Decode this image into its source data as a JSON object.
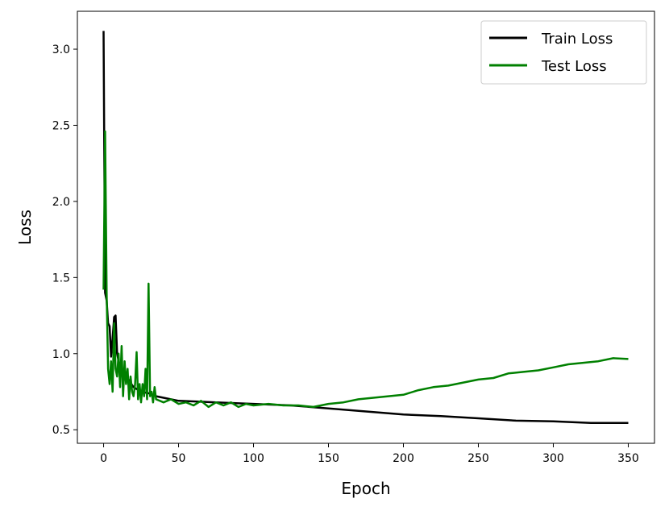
{
  "chart_data": {
    "type": "line",
    "xlabel": "Epoch",
    "ylabel": "Loss",
    "xlim": [
      -17.5,
      367.5
    ],
    "ylim": [
      0.411,
      3.249
    ],
    "xticks": [
      0,
      50,
      100,
      150,
      200,
      250,
      300,
      350
    ],
    "yticks": [
      {
        "value": 0.5,
        "label": "0.5"
      },
      {
        "value": 1,
        "label": "1.0"
      },
      {
        "value": 1.5,
        "label": "1.5"
      },
      {
        "value": 2,
        "label": "2.0"
      },
      {
        "value": 2.5,
        "label": "2.5"
      },
      {
        "value": 3,
        "label": "3.0"
      }
    ],
    "legend": "upper right",
    "series": [
      {
        "name": "Train Loss",
        "color": "#000000",
        "x": [
          0,
          1,
          2,
          3,
          4,
          5,
          6,
          7,
          8,
          9,
          10,
          12,
          15,
          20,
          25,
          30,
          35,
          40,
          50,
          75,
          100,
          125,
          150,
          175,
          200,
          225,
          250,
          275,
          300,
          325,
          350
        ],
        "values": [
          3.12,
          1.4,
          1.35,
          1.2,
          1.18,
          0.98,
          1.1,
          1.24,
          1.25,
          1.0,
          0.95,
          0.9,
          0.85,
          0.78,
          0.75,
          0.74,
          0.72,
          0.71,
          0.69,
          0.68,
          0.67,
          0.66,
          0.64,
          0.62,
          0.6,
          0.59,
          0.575,
          0.56,
          0.555,
          0.545,
          0.545
        ]
      },
      {
        "name": "Test Loss",
        "color": "#008000",
        "x": [
          0,
          1,
          2,
          3,
          4,
          5,
          6,
          7,
          8,
          9,
          10,
          11,
          12,
          13,
          14,
          15,
          16,
          17,
          18,
          19,
          20,
          21,
          22,
          23,
          24,
          25,
          26,
          27,
          28,
          29,
          30,
          31,
          32,
          33,
          34,
          35,
          40,
          45,
          50,
          55,
          60,
          65,
          70,
          75,
          80,
          85,
          90,
          95,
          100,
          110,
          120,
          130,
          140,
          150,
          160,
          170,
          180,
          190,
          200,
          210,
          220,
          230,
          240,
          250,
          260,
          270,
          280,
          290,
          300,
          310,
          320,
          330,
          340,
          350
        ],
        "values": [
          1.42,
          2.46,
          1.4,
          0.9,
          0.8,
          0.95,
          0.75,
          1.2,
          0.9,
          0.85,
          1.0,
          0.78,
          1.05,
          0.72,
          0.95,
          0.8,
          0.9,
          0.7,
          0.85,
          0.75,
          0.72,
          0.8,
          1.01,
          0.7,
          0.8,
          0.68,
          0.8,
          0.72,
          0.9,
          0.7,
          1.46,
          0.72,
          0.75,
          0.68,
          0.78,
          0.7,
          0.68,
          0.7,
          0.67,
          0.68,
          0.66,
          0.69,
          0.65,
          0.68,
          0.66,
          0.68,
          0.65,
          0.67,
          0.66,
          0.67,
          0.66,
          0.66,
          0.65,
          0.67,
          0.68,
          0.7,
          0.71,
          0.72,
          0.73,
          0.76,
          0.78,
          0.79,
          0.81,
          0.83,
          0.84,
          0.87,
          0.88,
          0.89,
          0.91,
          0.93,
          0.94,
          0.95,
          0.97,
          0.965
        ]
      }
    ]
  }
}
